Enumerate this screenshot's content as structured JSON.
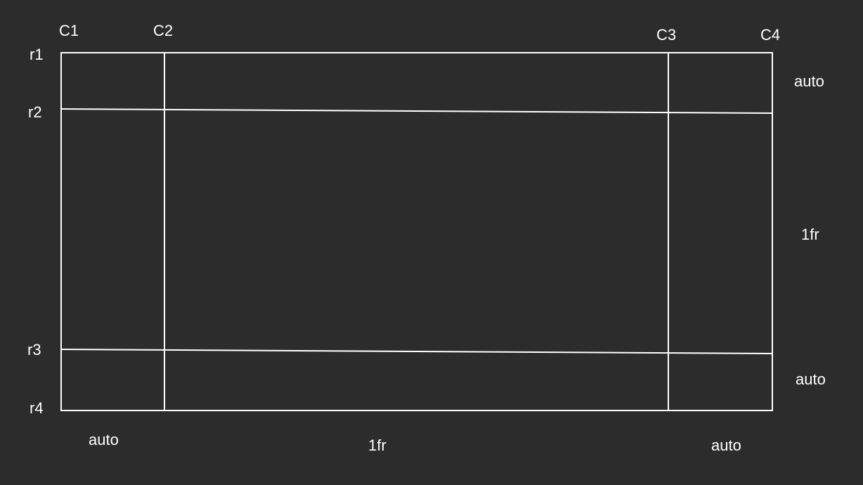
{
  "diagram": {
    "column_lines": [
      "C1",
      "C2",
      "C3",
      "C4"
    ],
    "row_lines": [
      "r1",
      "r2",
      "r3",
      "r4"
    ],
    "row_track_sizes": [
      "auto",
      "1fr",
      "auto"
    ],
    "column_track_sizes": [
      "auto",
      "1fr",
      "auto"
    ],
    "colors": {
      "background": "#2c2c2c",
      "lines": "#ffffff",
      "text": "#ffffff"
    }
  }
}
